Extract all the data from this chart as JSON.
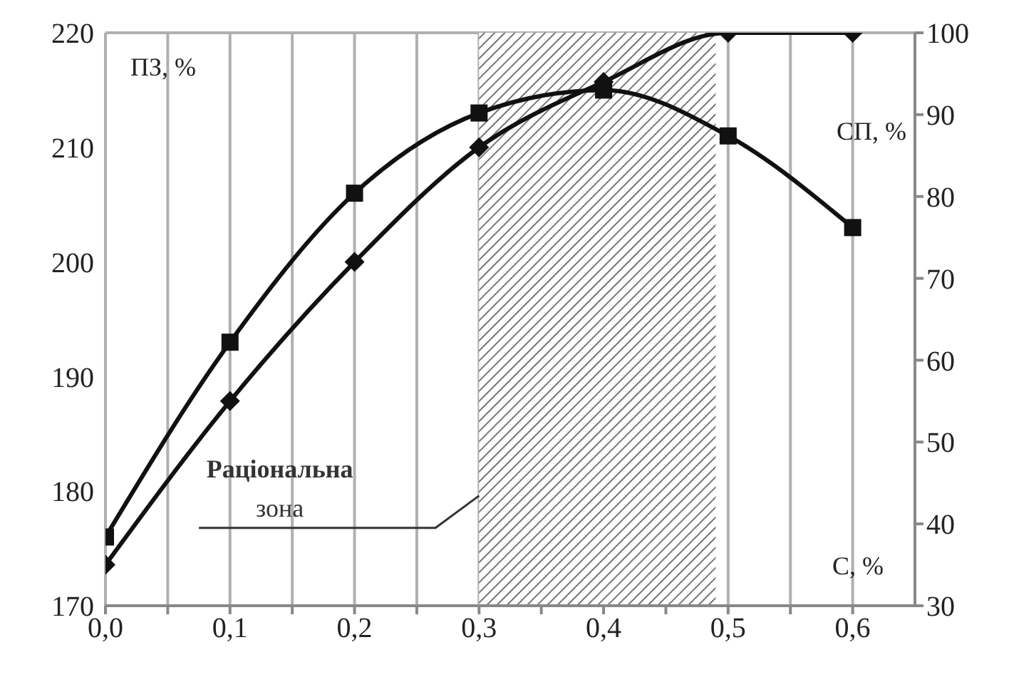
{
  "chart_data": {
    "type": "line",
    "xlabel": "С, %",
    "ylabel": "ПЗ, %",
    "y2label": "СП, %",
    "x": [
      0,
      0.1,
      0.2,
      0.3,
      0.4,
      0.5,
      0.6
    ],
    "series": [
      {
        "color": "#111111",
        "marker": "square",
        "values": [
          176,
          193,
          206,
          213,
          215,
          211,
          203
        ]
      },
      {
        "color": "#111111",
        "marker": "diamond",
        "axis": "y2",
        "values": [
          35,
          55,
          72,
          86,
          94,
          100,
          100
        ]
      }
    ],
    "xlim": [
      0,
      0.65
    ],
    "xticks": [
      {
        "value": 0,
        "label": "0,0"
      },
      {
        "value": 0.05,
        "label": null
      },
      {
        "value": 0.1,
        "label": "0,1"
      },
      {
        "value": 0.15,
        "label": null
      },
      {
        "value": 0.2,
        "label": "0,2"
      },
      {
        "value": 0.25,
        "label": null
      },
      {
        "value": 0.3,
        "label": "0,3"
      },
      {
        "value": 0.35,
        "label": null
      },
      {
        "value": 0.4,
        "label": "0,4"
      },
      {
        "value": 0.45,
        "label": null
      },
      {
        "value": 0.5,
        "label": "0,5"
      },
      {
        "value": 0.55,
        "label": null
      },
      {
        "value": 0.6,
        "label": "0,6"
      }
    ],
    "ylim": [
      170,
      220
    ],
    "yticks": [
      170,
      180,
      190,
      200,
      210,
      220
    ],
    "y2lim": [
      30,
      100
    ],
    "y2ticks": [
      30,
      40,
      50,
      60,
      70,
      80,
      90,
      100
    ],
    "bands": [
      {
        "axis": "x",
        "from": 0.3,
        "to": 0.49,
        "label": "Раціональна зона"
      }
    ],
    "grid": true,
    "legend": false,
    "line_style": "solid"
  }
}
